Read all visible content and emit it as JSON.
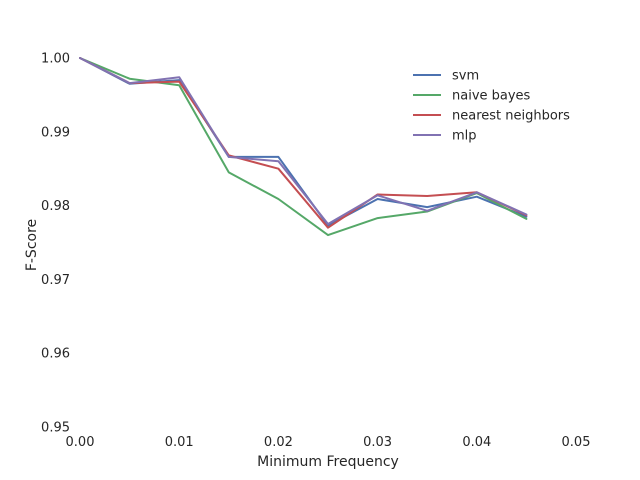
{
  "chart_data": {
    "type": "line",
    "xlabel": "Minimum Frequency",
    "ylabel": "F-Score",
    "xlim": [
      0.0,
      0.05
    ],
    "ylim": [
      0.95,
      1.0
    ],
    "xticks": [
      0.0,
      0.01,
      0.02,
      0.03,
      0.04,
      0.05
    ],
    "xtick_labels": [
      "0.00",
      "0.01",
      "0.02",
      "0.03",
      "0.04",
      "0.05"
    ],
    "yticks": [
      0.95,
      0.96,
      0.97,
      0.98,
      0.99,
      1.0
    ],
    "ytick_labels": [
      "0.95",
      "0.96",
      "0.97",
      "0.98",
      "0.99",
      "1.00"
    ],
    "grid": false,
    "legend_position": "top-right",
    "x": [
      0.0,
      0.005,
      0.01,
      0.015,
      0.02,
      0.025,
      0.03,
      0.035,
      0.04,
      0.045
    ],
    "series": [
      {
        "name": "svm",
        "color": "#4c72b0",
        "values": [
          1.0,
          0.9965,
          0.997,
          0.9866,
          0.9866,
          0.9773,
          0.9809,
          0.9798,
          0.9812,
          0.9785
        ]
      },
      {
        "name": "naive bayes",
        "color": "#55a868",
        "values": [
          1.0,
          0.9972,
          0.9963,
          0.9845,
          0.9809,
          0.976,
          0.9783,
          0.9792,
          0.9817,
          0.9782
        ]
      },
      {
        "name": "nearest neighbors",
        "color": "#c44e52",
        "values": [
          1.0,
          0.9966,
          0.9968,
          0.9868,
          0.985,
          0.977,
          0.9815,
          0.9813,
          0.9818,
          0.9787
        ]
      },
      {
        "name": "mlp",
        "color": "#8172b2",
        "values": [
          1.0,
          0.9966,
          0.9974,
          0.9866,
          0.986,
          0.9775,
          0.9814,
          0.9793,
          0.9818,
          0.9788
        ]
      }
    ]
  }
}
